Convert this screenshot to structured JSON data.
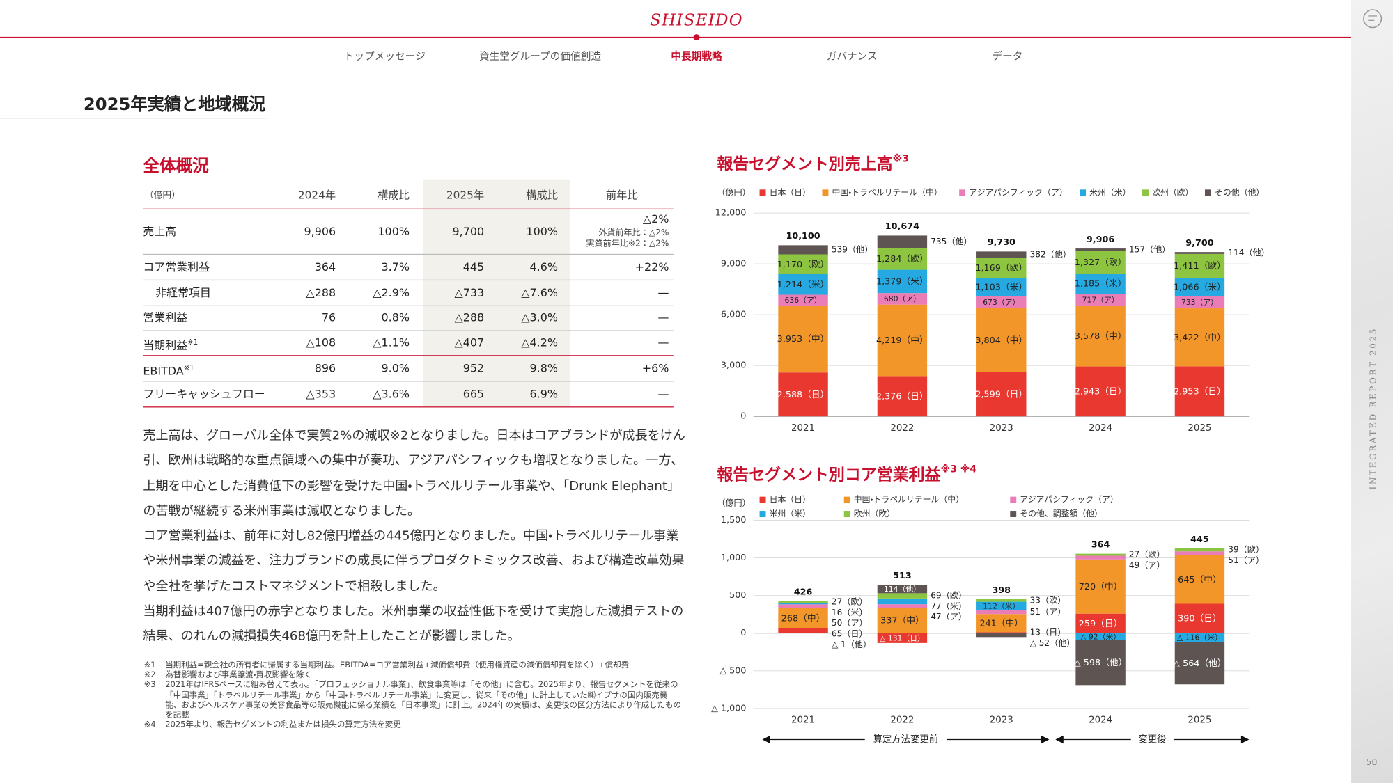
{
  "header": {
    "logo": "SHISEIDO",
    "nav": [
      "トップメッセージ",
      "資生堂グループの価値創造",
      "中長期戦略",
      "ガバナンス",
      "データ"
    ],
    "nav_active": 2,
    "page_title": "2025年実績と地域概況",
    "side_label": "INTEGRATED REPORT 2025",
    "page_number": "50"
  },
  "overview": {
    "title": "全体概況",
    "table": {
      "header": [
        "（億円）",
        "2024年",
        "構成比",
        "2025年",
        "構成比",
        "前年比"
      ],
      "rows": [
        {
          "cells": [
            "売上高",
            "9,906",
            "100%",
            "9,700",
            "100%",
            "△2%"
          ],
          "details": [
            "外貨前年比：△2%",
            "実質前年比※2：△2%"
          ]
        },
        {
          "cells": [
            "コア営業利益",
            "364",
            "3.7%",
            "445",
            "4.6%",
            "+22%"
          ]
        },
        {
          "cells": [
            "非経常項目",
            "△288",
            "△2.9%",
            "△733",
            "△7.6%",
            "—"
          ],
          "indent": true
        },
        {
          "cells": [
            "営業利益",
            "76",
            "0.8%",
            "△288",
            "△3.0%",
            "—"
          ]
        },
        {
          "cells": [
            "当期利益",
            "△108",
            "△1.1%",
            "△407",
            "△4.2%",
            "—"
          ],
          "note": "※1"
        },
        {
          "cells": [
            "EBITDA",
            "896",
            "9.0%",
            "952",
            "9.8%",
            "+6%"
          ],
          "note": "※1"
        },
        {
          "cells": [
            "フリーキャッシュフロー",
            "△353",
            "△3.6%",
            "665",
            "6.9%",
            "—"
          ]
        }
      ]
    }
  },
  "paragraphs": [
    "売上高は、グローバル全体で実質2%の減収※2となりました。日本はコアブランドが成長をけん引、欧州は戦略的な重点領域への集中が奏功、アジアパシフィックも増収となりました。一方、上期を中心とした消費低下の影響を受けた中国・トラベルリテール事業や、「Drunk Elephant」の苦戦が継続する米州事業は減収となりました。",
    "コア営業利益は、前年に対し82億円増益の445億円となりました。中国・トラベルリテール事業や米州事業の減益を、注力ブランドの成長に伴うプロダクトミックス改善、および構造改革効果や全社を挙げたコストマネジメントで相殺しました。",
    "当期利益は407億円の赤字となりました。米州事業の収益性低下を受けて実施した減損テストの結果、のれんの減損損失468億円を計上したことが影響しました。"
  ],
  "footnotes": [
    {
      "mark": "※1",
      "text": "当期利益=親会社の所有者に帰属する当期利益。EBITDA=コア営業利益+減価償却費（使用権資産の減価償却費を除く）+償却費"
    },
    {
      "mark": "※2",
      "text": "為替影響および事業譲渡・買収影響を除く"
    },
    {
      "mark": "※3",
      "text": "2021年はIFRSベースに組み替えて表示。「プロフェッショナル事業」、飲食事業等は「その他」に含む。2025年より、報告セグメントを従来の「中国事業」「トラベルリテール事業」から「中国・トラベルリテール事業」に変更し、従来「その他」に計上していた㈱イプサの国内販売機能、およびヘルスケア事業の美容食品等の販売機能に係る業績を「日本事業」に計上。2024年の実績は、変更後の区分方法により作成したものを記載"
    },
    {
      "mark": "※4",
      "text": "2025年より、報告セグメントの利益または損失の算定方法を変更"
    }
  ],
  "chart_data": [
    {
      "type": "bar",
      "stacked": true,
      "title": "報告セグメント別売上高",
      "title_note": "※3",
      "unit": "（億円）",
      "categories": [
        "2021",
        "2022",
        "2023",
        "2024",
        "2025"
      ],
      "ylim": [
        0,
        12000
      ],
      "yticks": [
        0,
        {
          "value": 3000,
          "label": "3,000"
        },
        {
          "value": 6000,
          "label": "6,000"
        },
        {
          "value": 9000,
          "label": "9,000"
        },
        {
          "value": 12000,
          "label": "12,000"
        }
      ],
      "grid": true,
      "totals": [
        10100,
        10674,
        9730,
        9906,
        9700
      ],
      "total_labels": [
        "10,100",
        "10,674",
        "9,730",
        "9,906",
        "9,700"
      ],
      "series": [
        {
          "name": "日本（日）",
          "color": "#e8382f",
          "values": [
            2588,
            2376,
            2599,
            2943,
            2953
          ],
          "value_labels": [
            "2,588（日）",
            "2,376（日）",
            "2,599（日）",
            "2,943（日）",
            "2,953（日）"
          ]
        },
        {
          "name": "中国・トラベルリテール（中）",
          "color": "#f3962a",
          "values": [
            3953,
            4219,
            3804,
            3578,
            3422
          ],
          "value_labels": [
            "3,953（中）",
            "4,219（中）",
            "3,804（中）",
            "3,578（中）",
            "3,422（中）"
          ]
        },
        {
          "name": "アジアパシフィック（ア）",
          "color": "#ea7db6",
          "values": [
            636,
            680,
            673,
            717,
            733
          ],
          "value_labels": [
            "636（ア）",
            "680（ア）",
            "673（ア）",
            "717（ア）",
            "733（ア）"
          ]
        },
        {
          "name": "米州（米）",
          "color": "#25a9e0",
          "values": [
            1214,
            1379,
            1103,
            1185,
            1066
          ],
          "value_labels": [
            "1,214（米）",
            "1,379（米）",
            "1,103（米）",
            "1,185（米）",
            "1,066（米）"
          ]
        },
        {
          "name": "欧州（欧）",
          "color": "#8dc540",
          "values": [
            1170,
            1284,
            1169,
            1327,
            1411
          ],
          "value_labels": [
            "1,170（欧）",
            "1,284（欧）",
            "1,169（欧）",
            "1,327（欧）",
            "1,411（欧）"
          ]
        },
        {
          "name": "その他（他）",
          "color": "#5e5553",
          "values": [
            539,
            735,
            382,
            157,
            114
          ],
          "value_labels": [
            "539（他）",
            "735（他）",
            "382（他）",
            "157（他）",
            "114（他）"
          ]
        }
      ]
    },
    {
      "type": "bar",
      "stacked": true,
      "title": "報告セグメント別コア営業利益",
      "title_note": "※3 ※4",
      "unit": "（億円）",
      "categories": [
        "2021",
        "2022",
        "2023",
        "2024",
        "2025"
      ],
      "ylim": [
        -1000,
        1500
      ],
      "yticks": [
        {
          "value": -1000,
          "label": "△ 1,000"
        },
        {
          "value": -500,
          "label": "△ 500"
        },
        0,
        500,
        {
          "value": 1000,
          "label": "1,000"
        },
        {
          "value": 1500,
          "label": "1,500"
        }
      ],
      "grid": true,
      "totals": [
        426,
        513,
        398,
        364,
        445
      ],
      "series": [
        {
          "name": "日本（日）",
          "color": "#e8382f",
          "values": [
            65,
            -131,
            13,
            259,
            390
          ],
          "value_labels": [
            "65（日）",
            "△ 131（日）",
            "13（日）",
            "259（日）",
            "390（日）"
          ]
        },
        {
          "name": "中国・トラベルリテール（中）",
          "color": "#f3962a",
          "values": [
            268,
            337,
            241,
            720,
            645
          ],
          "value_labels": [
            "268（中）",
            "337（中）",
            "241（中）",
            "720（中）",
            "645（中）"
          ]
        },
        {
          "name": "アジアパシフィック（ア）",
          "color": "#ea7db6",
          "values": [
            50,
            47,
            51,
            49,
            51
          ],
          "value_labels": [
            "50（ア）",
            "47（ア）",
            "51（ア）",
            "49（ア）",
            "51（ア）"
          ]
        },
        {
          "name": "米州（米）",
          "color": "#25a9e0",
          "values": [
            16,
            77,
            112,
            -92,
            -116
          ],
          "value_labels": [
            "16（米）",
            "77（米）",
            "112（米）",
            "△ 92（米）",
            "△ 116（米）"
          ]
        },
        {
          "name": "欧州（欧）",
          "color": "#8dc540",
          "values": [
            27,
            69,
            33,
            27,
            39
          ],
          "value_labels": [
            "27（欧）",
            "69（欧）",
            "33（欧）",
            "27（欧）",
            "39（欧）"
          ]
        },
        {
          "name": "その他、調整額（他）",
          "color": "#5e5553",
          "values": [
            -1,
            114,
            -52,
            -598,
            -564
          ],
          "value_labels": [
            "△ 1（他）",
            "114（他）",
            "△ 52（他）",
            "△ 598（他）",
            "△ 564（他）"
          ]
        }
      ],
      "annotations": [
        "算定方法変更前",
        "変更後"
      ]
    }
  ]
}
